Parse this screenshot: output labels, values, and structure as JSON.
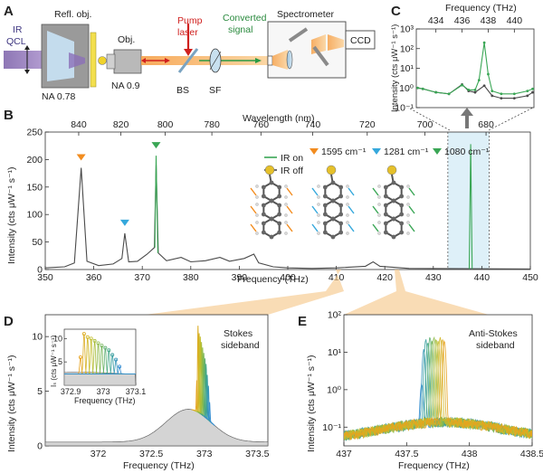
{
  "panel_labels": {
    "A": "A",
    "B": "B",
    "C": "C",
    "D": "D",
    "E": "E"
  },
  "setup": {
    "ir_qcl": [
      "IR",
      "QCL"
    ],
    "refl_obj": "Refl. obj.",
    "obj": "Obj.",
    "na_refl": "NA 0.78",
    "na_obj": "NA 0.9",
    "pump_laser": [
      "Pump",
      "laser"
    ],
    "converted_signal": [
      "Converted",
      "signal"
    ],
    "spectrometer": "Spectrometer",
    "ccd": "CCD",
    "bs": "BS",
    "sf": "SF"
  },
  "legend": {
    "ir_on": "IR on",
    "ir_off": "IR off"
  },
  "modes": [
    "1595 cm⁻¹",
    "1281 cm⁻¹",
    "1080 cm⁻¹"
  ],
  "colors": {
    "ir_on": "#3aa655",
    "ir_off": "#4a4a4a",
    "mode_orange": "#f28c1f",
    "mode_blue": "#35a8dc",
    "mode_green": "#3aa655",
    "highlight": "#f6c98d",
    "bluebox": "#d6ecf6"
  },
  "chart_data": [
    {
      "id": "B",
      "type": "line",
      "xlabel": "Frequency (THz)",
      "ylabel": "Intensity (cts μW⁻¹ s⁻¹)",
      "top_axis_label": "Wavelength (nm)",
      "xlim": [
        350,
        450
      ],
      "ylim": [
        0,
        250
      ],
      "x_ticks": [
        "350",
        "360",
        "370",
        "380",
        "390",
        "400",
        "410",
        "420",
        "430",
        "440",
        "450"
      ],
      "y_ticks": [
        "0",
        "50",
        "100",
        "150",
        "200",
        "250"
      ],
      "top_ticks": [
        "840",
        "820",
        "800",
        "780",
        "760",
        "740",
        "720",
        "700",
        "680"
      ],
      "top_tick_nm": [
        840,
        820,
        800,
        780,
        760,
        740,
        720,
        700,
        680
      ],
      "series": [
        {
          "name": "IR off",
          "points": [
            [
              350,
              3
            ],
            [
              354,
              5
            ],
            [
              356,
              12
            ],
            [
              357.4,
              185
            ],
            [
              358.6,
              15
            ],
            [
              361,
              7
            ],
            [
              364,
              10
            ],
            [
              365.8,
              20
            ],
            [
              366.4,
              66
            ],
            [
              367.2,
              14
            ],
            [
              369,
              15
            ],
            [
              371,
              28
            ],
            [
              372.5,
              40
            ],
            [
              372.85,
              190
            ],
            [
              373.3,
              30
            ],
            [
              375,
              16
            ],
            [
              378,
              22
            ],
            [
              380,
              14
            ],
            [
              383,
              16
            ],
            [
              386,
              22
            ],
            [
              388,
              15
            ],
            [
              391,
              20
            ],
            [
              393,
              28
            ],
            [
              394,
              12
            ],
            [
              397,
              5
            ],
            [
              400,
              3
            ],
            [
              405,
              2
            ],
            [
              410,
              3
            ],
            [
              416,
              6
            ],
            [
              417.6,
              14
            ],
            [
              419,
              6
            ],
            [
              425,
              2
            ],
            [
              450,
              1
            ]
          ]
        },
        {
          "name": "IR on",
          "points": [
            [
              372.6,
              40
            ],
            [
              372.85,
              207
            ],
            [
              373.2,
              30
            ],
            [
              437.4,
              1
            ],
            [
              437.7,
              228
            ],
            [
              438.0,
              1
            ]
          ]
        }
      ],
      "peak_markers": [
        {
          "x": 357.4,
          "color": "mode_orange"
        },
        {
          "x": 366.4,
          "color": "mode_blue"
        },
        {
          "x": 372.85,
          "color": "mode_green"
        }
      ]
    },
    {
      "id": "C",
      "type": "line",
      "xlabel": "Frequency (THz)",
      "ylabel": "Intensity (cts μW⁻¹ s⁻¹)",
      "xlim": [
        432.5,
        441.5
      ],
      "ylim_log": [
        -1,
        3
      ],
      "x_ticks": [
        "434",
        "436",
        "438",
        "440"
      ],
      "y_ticks": [
        "10⁻¹",
        "10⁰",
        "10¹",
        "10²",
        "10³"
      ],
      "series": [
        {
          "name": "IR off",
          "points": [
            [
              432.6,
              1.0
            ],
            [
              433,
              0.9
            ],
            [
              434,
              0.6
            ],
            [
              435,
              0.5
            ],
            [
              436,
              1.5
            ],
            [
              436.5,
              0.7
            ],
            [
              437,
              0.6
            ],
            [
              437.7,
              1.3
            ],
            [
              438.3,
              0.4
            ],
            [
              439,
              0.3
            ],
            [
              440,
              0.3
            ],
            [
              441,
              0.4
            ],
            [
              441.4,
              0.6
            ]
          ]
        },
        {
          "name": "IR on",
          "points": [
            [
              432.6,
              1.0
            ],
            [
              433,
              0.9
            ],
            [
              434,
              0.6
            ],
            [
              435,
              0.5
            ],
            [
              436,
              1.4
            ],
            [
              436.5,
              0.8
            ],
            [
              437,
              0.8
            ],
            [
              437.3,
              2.5
            ],
            [
              437.7,
              200
            ],
            [
              438.0,
              5
            ],
            [
              438.3,
              0.7
            ],
            [
              439,
              0.5
            ],
            [
              440,
              0.5
            ],
            [
              441,
              0.7
            ],
            [
              441.4,
              0.9
            ]
          ]
        }
      ]
    },
    {
      "id": "D",
      "type": "line",
      "title": [
        "Stokes",
        "sideband"
      ],
      "xlabel": "Frequency (THz)",
      "ylabel": "Intensity (cts μW⁻¹ s⁻¹)",
      "xlim": [
        371.5,
        373.6
      ],
      "ylim": [
        0,
        12
      ],
      "x_ticks": [
        "372",
        "372.5",
        "373",
        "373.5"
      ],
      "y_ticks": [
        "0",
        "5",
        "10"
      ],
      "background_peak": {
        "center": 372.85,
        "height": 3.0,
        "width": 0.3
      },
      "sharp_peaks": {
        "start": 372.93,
        "end": 373.05,
        "count": 12,
        "heights": [
          6.0,
          11.0,
          10.3,
          10.0,
          9.5,
          9.0,
          8.5,
          8.0,
          7.5,
          6.5,
          5.5,
          4.0
        ]
      },
      "inset": {
        "xlabel": "Frequency (THz)",
        "ylabel": "Iₛ (cts μW⁻¹ s⁻¹)",
        "xlim": [
          372.88,
          373.1
        ],
        "ylim": [
          0,
          12
        ],
        "x_ticks": [
          "372.9",
          "373",
          "373.1"
        ],
        "y_ticks": [
          "5",
          "10"
        ]
      }
    },
    {
      "id": "E",
      "type": "line",
      "title": [
        "Anti-Stokes",
        "sideband"
      ],
      "xlabel": "Frequency (THz)",
      "ylabel": "Intensity (cts μW⁻¹ s⁻¹)",
      "xlim": [
        437,
        438.5
      ],
      "ylim_log": [
        -1.5,
        2
      ],
      "x_ticks": [
        "437",
        "437.5",
        "438",
        "438.5"
      ],
      "y_ticks": [
        "10⁻¹",
        "10⁰",
        "10¹",
        "10²"
      ],
      "background_peak": {
        "center": 437.8,
        "height": 0.09,
        "width": 0.55
      },
      "sharp_peaks": {
        "start": 437.62,
        "end": 437.8,
        "count": 12,
        "heights": [
          1.3,
          12,
          22,
          18,
          25,
          20,
          25,
          22,
          20,
          25,
          22,
          20
        ]
      }
    }
  ]
}
